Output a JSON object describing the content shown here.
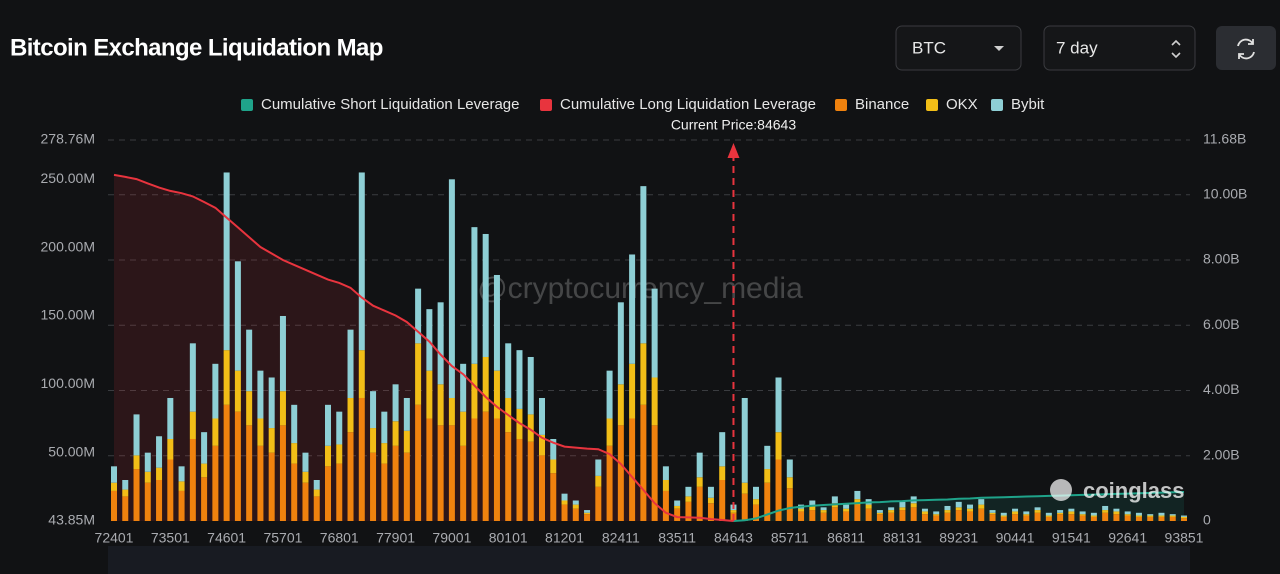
{
  "controls": {
    "symbol": "BTC",
    "range": "7 day"
  },
  "chart_data": {
    "type": "bar",
    "stacked": true,
    "title": "Bitcoin Exchange Liquidation Map",
    "watermark": "@cryptocurrency_media",
    "brand": "coinglass",
    "current_price": 84643,
    "current_price_label": "Current Price:84643",
    "categories": [
      72401,
      null,
      null,
      null,
      null,
      73501,
      null,
      null,
      null,
      null,
      74601,
      null,
      null,
      null,
      null,
      75701,
      null,
      null,
      null,
      null,
      76801,
      null,
      null,
      null,
      null,
      77901,
      null,
      null,
      null,
      null,
      79001,
      null,
      null,
      null,
      null,
      80101,
      null,
      null,
      null,
      null,
      81201,
      null,
      null,
      null,
      null,
      82411,
      null,
      null,
      null,
      null,
      83511,
      null,
      null,
      null,
      null,
      84643,
      null,
      null,
      null,
      null,
      85711,
      null,
      null,
      null,
      null,
      86811,
      null,
      null,
      null,
      null,
      88131,
      null,
      null,
      null,
      null,
      89231,
      null,
      null,
      null,
      null,
      90441,
      null,
      null,
      null,
      null,
      91541,
      null,
      null,
      null,
      null,
      92641,
      null,
      null,
      null,
      null,
      93851
    ],
    "ylim": [
      0,
      278.76
    ],
    "y_min_label": "43.85M",
    "yticks": [
      {
        "value": 50,
        "label": "50.00M"
      },
      {
        "value": 100,
        "label": "100.00M"
      },
      {
        "value": 150,
        "label": "150.00M"
      },
      {
        "value": 200,
        "label": "200.00M"
      },
      {
        "value": 250,
        "label": "250.00M"
      },
      {
        "value": 278.76,
        "label": "278.76M"
      }
    ],
    "y2lim": [
      0,
      11.68
    ],
    "y2ticks": [
      0,
      {
        "value": 2,
        "label": "2.00B"
      },
      {
        "value": 4,
        "label": "4.00B"
      },
      {
        "value": 6,
        "label": "6.00B"
      },
      {
        "value": 8,
        "label": "8.00B"
      },
      {
        "value": 10,
        "label": "10.00B"
      },
      {
        "value": 11.68,
        "label": "11.68B"
      }
    ],
    "grid": true,
    "legend": "top",
    "series": [
      {
        "name": "Cumulative Short Liquidation Leverage",
        "type": "line",
        "axis": "y2",
        "color": "#1fa38a",
        "values": [
          null,
          null,
          null,
          null,
          null,
          null,
          null,
          null,
          null,
          null,
          null,
          null,
          null,
          null,
          null,
          null,
          null,
          null,
          null,
          null,
          null,
          null,
          null,
          null,
          null,
          null,
          null,
          null,
          null,
          null,
          null,
          null,
          null,
          null,
          null,
          null,
          null,
          null,
          null,
          null,
          null,
          null,
          null,
          null,
          null,
          null,
          null,
          null,
          null,
          null,
          null,
          null,
          null,
          null,
          null,
          0,
          0.02,
          0.08,
          0.2,
          0.32,
          0.4,
          0.44,
          0.47,
          0.49,
          0.51,
          0.53,
          0.55,
          0.57,
          0.58,
          0.6,
          0.61,
          0.63,
          0.64,
          0.65,
          0.66,
          0.68,
          0.69,
          0.71,
          0.72,
          0.73,
          0.74,
          0.75,
          0.76,
          0.77,
          0.78,
          0.79,
          0.8,
          0.81,
          0.82,
          0.83,
          0.84,
          0.85,
          0.86,
          0.87,
          0.88,
          0.89
        ]
      },
      {
        "name": "Cumulative Long Liquidation Leverage",
        "type": "line",
        "axis": "y2",
        "color": "#e8343e",
        "values": [
          10.61,
          10.55,
          10.48,
          10.35,
          10.22,
          10.12,
          10.05,
          9.95,
          9.78,
          9.6,
          9.3,
          9.0,
          8.7,
          8.4,
          8.2,
          8.0,
          7.85,
          7.7,
          7.55,
          7.4,
          7.3,
          7.15,
          6.85,
          6.6,
          6.45,
          6.3,
          6.1,
          5.8,
          5.5,
          5.1,
          4.75,
          4.5,
          4.15,
          3.8,
          3.5,
          3.25,
          3.0,
          2.8,
          2.55,
          2.4,
          2.28,
          2.25,
          2.22,
          2.2,
          2.05,
          1.75,
          1.35,
          0.95,
          0.55,
          0.25,
          0.12,
          0.11,
          0.1,
          0.06,
          0.03,
          0,
          null,
          null,
          null,
          null,
          null,
          null,
          null,
          null,
          null,
          null,
          null,
          null,
          null,
          null,
          null,
          null,
          null,
          null,
          null,
          null,
          null,
          null,
          null,
          null,
          null,
          null,
          null,
          null,
          null,
          null,
          null,
          null,
          null,
          null,
          null,
          null,
          null,
          null,
          null,
          null
        ]
      },
      {
        "name": "Binance",
        "type": "bar",
        "color": "#f0820e",
        "values": [
          22,
          18,
          38,
          28,
          30,
          45,
          22,
          60,
          32,
          55,
          85,
          80,
          70,
          55,
          50,
          70,
          42,
          28,
          18,
          40,
          42,
          65,
          90,
          50,
          42,
          55,
          50,
          85,
          75,
          70,
          70,
          55,
          75,
          80,
          75,
          65,
          60,
          58,
          48,
          35,
          12,
          9,
          5,
          25,
          55,
          70,
          75,
          85,
          70,
          22,
          9,
          14,
          25,
          13,
          30,
          6,
          20,
          12,
          28,
          45,
          24,
          7,
          8,
          6,
          10,
          7,
          12,
          9,
          5,
          6,
          8,
          10,
          5,
          4,
          6,
          8,
          7,
          9,
          5,
          3,
          5,
          4,
          6,
          3,
          5,
          5,
          4,
          3,
          6,
          5,
          4,
          3,
          3,
          3,
          3,
          2
        ]
      },
      {
        "name": "OKX",
        "type": "bar",
        "color": "#f2be17",
        "values": [
          6,
          5,
          10,
          8,
          9,
          15,
          7,
          20,
          10,
          20,
          40,
          30,
          25,
          20,
          18,
          25,
          15,
          8,
          5,
          15,
          14,
          25,
          35,
          18,
          15,
          18,
          16,
          45,
          35,
          30,
          20,
          25,
          40,
          40,
          35,
          25,
          22,
          20,
          15,
          10,
          3,
          3,
          1,
          8,
          20,
          30,
          40,
          45,
          35,
          8,
          2,
          4,
          7,
          4,
          10,
          2,
          8,
          4,
          10,
          20,
          8,
          2,
          3,
          2,
          3,
          2,
          4,
          3,
          1,
          2,
          2,
          3,
          2,
          1,
          2,
          2,
          2,
          3,
          1,
          1,
          2,
          1,
          2,
          1,
          1,
          2,
          1,
          1,
          2,
          2,
          1,
          1,
          1,
          1,
          1,
          1
        ]
      },
      {
        "name": "Bybit",
        "type": "bar",
        "color": "#8ecfd5",
        "values": [
          12,
          7,
          30,
          14,
          23,
          30,
          11,
          50,
          23,
          40,
          130,
          80,
          45,
          35,
          37,
          55,
          28,
          14,
          7,
          30,
          24,
          50,
          130,
          27,
          23,
          27,
          24,
          40,
          45,
          60,
          160,
          35,
          100,
          90,
          70,
          40,
          43,
          42,
          27,
          15,
          5,
          3,
          2,
          12,
          35,
          60,
          80,
          115,
          65,
          10,
          4,
          7,
          18,
          8,
          25,
          4,
          62,
          9,
          17,
          40,
          13,
          3,
          4,
          2,
          5,
          3,
          6,
          4,
          2,
          2,
          4,
          5,
          2,
          2,
          3,
          4,
          3,
          4,
          2,
          2,
          2,
          2,
          2,
          2,
          2,
          2,
          2,
          2,
          3,
          2,
          2,
          2,
          1,
          2,
          1,
          1
        ]
      }
    ]
  }
}
